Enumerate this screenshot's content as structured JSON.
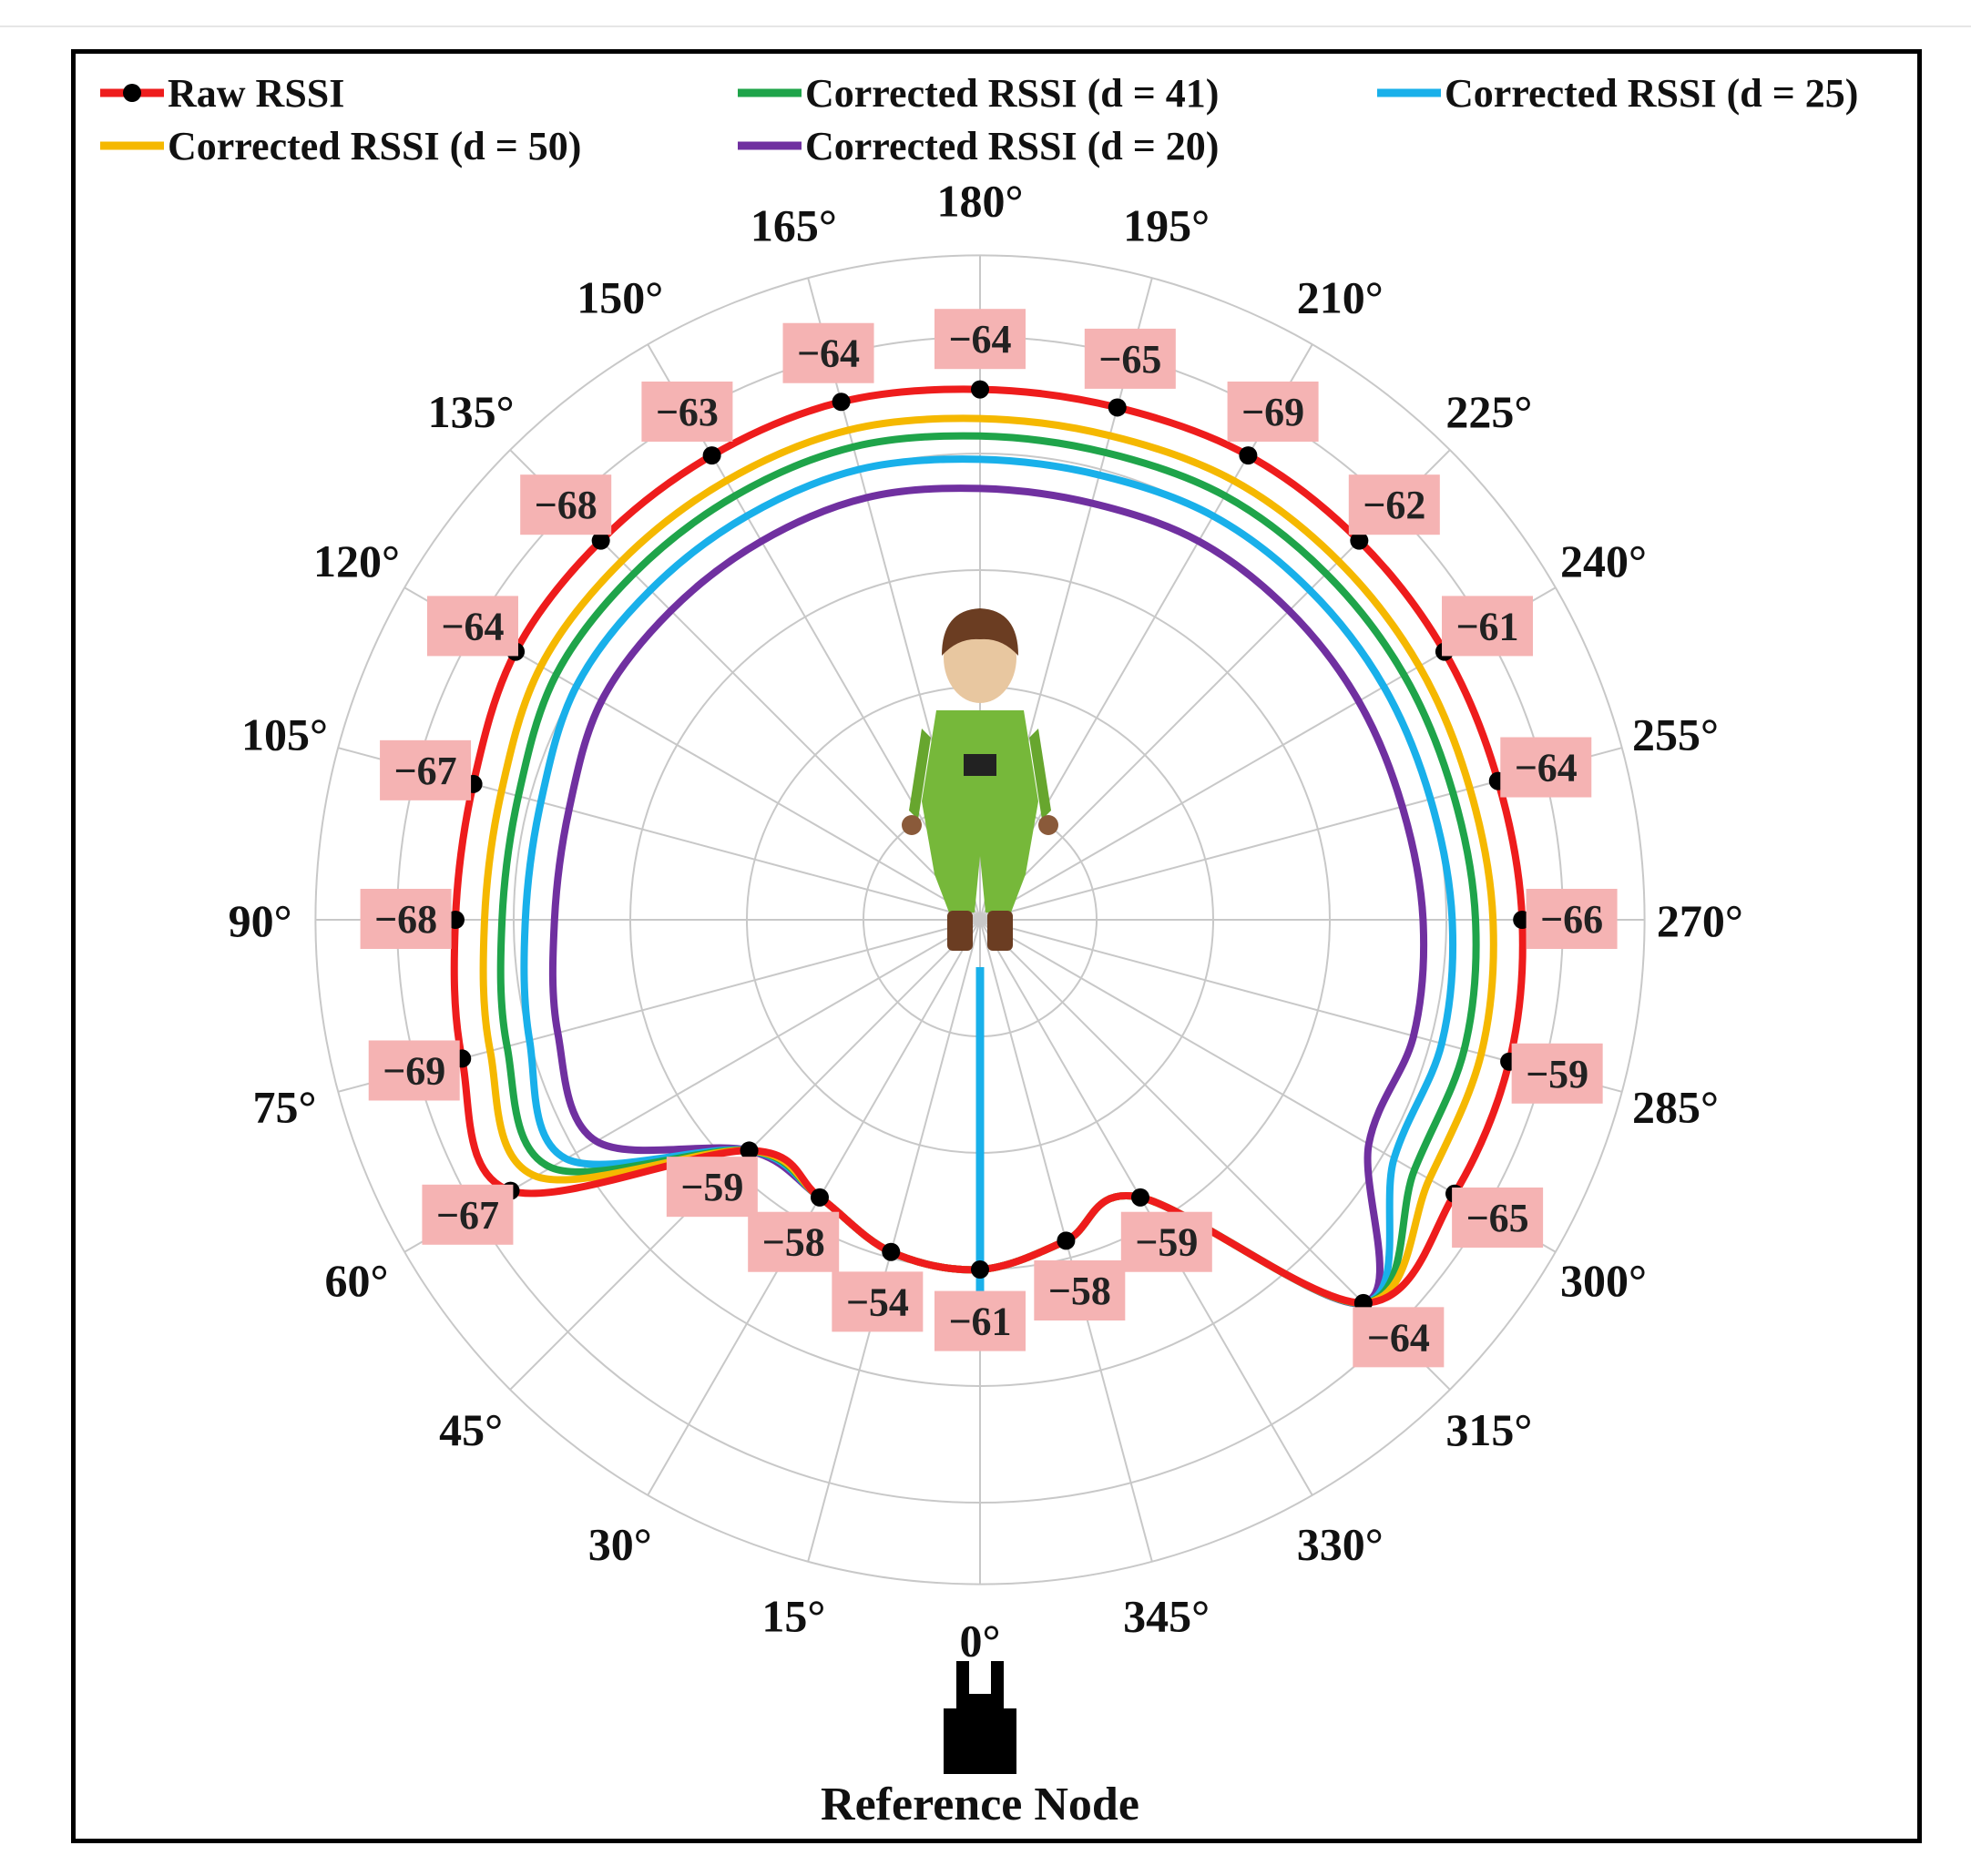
{
  "chart_data": {
    "type": "polar-line",
    "angle_unit": "degrees",
    "angles": [
      0,
      15,
      30,
      45,
      60,
      75,
      90,
      105,
      120,
      135,
      150,
      165,
      180,
      195,
      210,
      225,
      240,
      255,
      270,
      285,
      300,
      315,
      330,
      345
    ],
    "angle_tick_labels": [
      "0°",
      "15°",
      "30°",
      "45°",
      "60°",
      "75°",
      "90°",
      "105°",
      "120°",
      "135°",
      "150°",
      "165°",
      "180°",
      "195°",
      "210°",
      "225°",
      "240°",
      "255°",
      "270°",
      "285°",
      "300°",
      "315°",
      "330°",
      "345°"
    ],
    "grid": true,
    "radial_ticks_shown": false,
    "legend_position": "top",
    "series": [
      {
        "name": "Raw RSSI",
        "color": "#ee1c1c",
        "markers": true,
        "radius_fraction": [
          0.6,
          0.59,
          0.55,
          0.56,
          0.93,
          0.92,
          0.9,
          0.9,
          0.92,
          0.92,
          0.92,
          0.92,
          0.91,
          0.91,
          0.92,
          0.92,
          0.92,
          0.92,
          0.93,
          0.94,
          0.94,
          0.93,
          0.55,
          0.57
        ],
        "value_labels": [
          "−61",
          "−54",
          "−58",
          "−59",
          "−67",
          "−69",
          "−68",
          "−67",
          "−64",
          "−68",
          "−63",
          "−64",
          "−64",
          "−65",
          "−69",
          "−62",
          "−61",
          "−64",
          "−66",
          "−59",
          "−65",
          "−64",
          "−59",
          "−58"
        ]
      },
      {
        "name": "Corrected RSSI (d = 50)",
        "color": "#f5b800",
        "radius_fraction": [
          0.6,
          0.59,
          0.55,
          0.56,
          0.88,
          0.87,
          0.85,
          0.85,
          0.87,
          0.87,
          0.87,
          0.87,
          0.86,
          0.86,
          0.87,
          0.87,
          0.87,
          0.87,
          0.88,
          0.89,
          0.89,
          0.93,
          0.55,
          0.57
        ]
      },
      {
        "name": "Corrected RSSI (d = 41)",
        "color": "#1fa44a",
        "radius_fraction": [
          0.6,
          0.59,
          0.55,
          0.56,
          0.85,
          0.84,
          0.82,
          0.82,
          0.84,
          0.84,
          0.84,
          0.84,
          0.83,
          0.83,
          0.84,
          0.84,
          0.84,
          0.84,
          0.85,
          0.86,
          0.86,
          0.93,
          0.55,
          0.57
        ]
      },
      {
        "name": "Corrected RSSI (d = 25)",
        "color": "#19b0ea",
        "radius_fraction": [
          0.6,
          0.59,
          0.55,
          0.56,
          0.82,
          0.8,
          0.78,
          0.78,
          0.8,
          0.8,
          0.8,
          0.8,
          0.79,
          0.79,
          0.8,
          0.8,
          0.8,
          0.8,
          0.81,
          0.82,
          0.82,
          0.93,
          0.55,
          0.57
        ]
      },
      {
        "name": "Corrected RSSI (d = 20)",
        "color": "#7030a0",
        "radius_fraction": [
          0.6,
          0.59,
          0.55,
          0.56,
          0.76,
          0.75,
          0.73,
          0.73,
          0.75,
          0.75,
          0.75,
          0.75,
          0.74,
          0.74,
          0.75,
          0.75,
          0.75,
          0.75,
          0.76,
          0.77,
          0.77,
          0.93,
          0.55,
          0.57
        ]
      }
    ],
    "annotations": {
      "reference_node": "Reference Node"
    }
  }
}
